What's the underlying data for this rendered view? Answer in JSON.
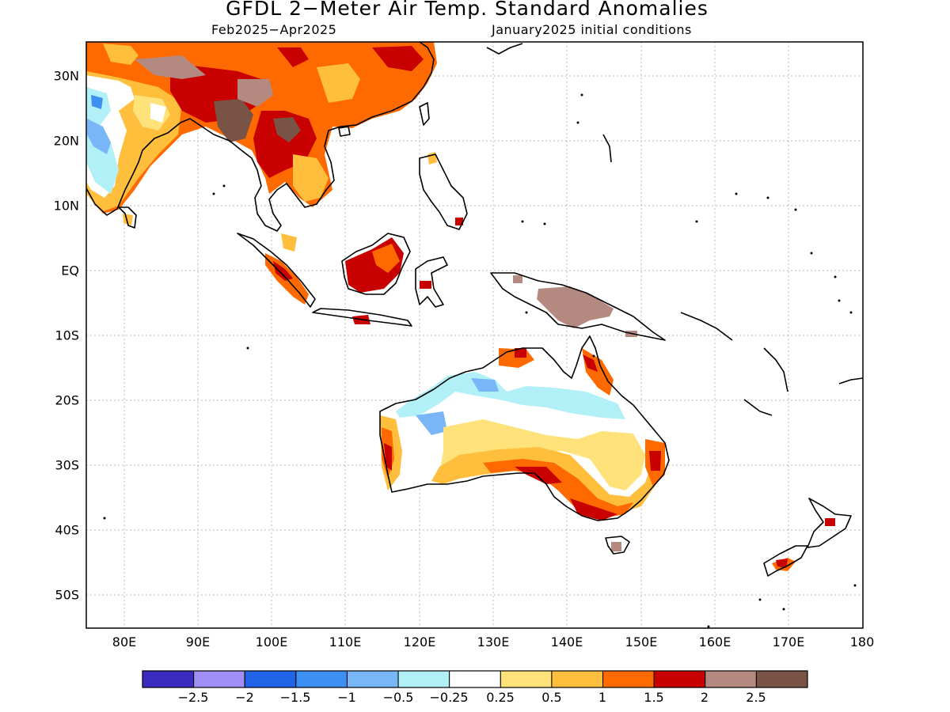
{
  "title": "GFDL 2-Meter Air Temp. Standard Anomalies",
  "subtitle_left": "Feb2025-Apr2025",
  "subtitle_right": "January2025 initial conditions",
  "lat_labels": [
    "30N",
    "20N",
    "10N",
    "EQ",
    "10S",
    "20S",
    "30S",
    "40S",
    "50S"
  ],
  "lon_labels": [
    "80E",
    "90E",
    "100E",
    "110E",
    "120E",
    "130E",
    "140E",
    "150E",
    "160E",
    "170E",
    "180"
  ],
  "colorbar": {
    "colors": [
      "#3b2bbe",
      "#9f8ff4",
      "#1f64e6",
      "#3e8ff2",
      "#78b6f7",
      "#b2f0f7",
      "#ffffff",
      "#ffe27a",
      "#ffbe3c",
      "#ff6a00",
      "#c80000",
      "#b48a80",
      "#7a5347"
    ],
    "labels": [
      "-2.5",
      "-2",
      "-1.5",
      "-1",
      "-0.5",
      "-0.25",
      "0.25",
      "0.5",
      "1",
      "1.5",
      "2",
      "2.5"
    ]
  }
}
